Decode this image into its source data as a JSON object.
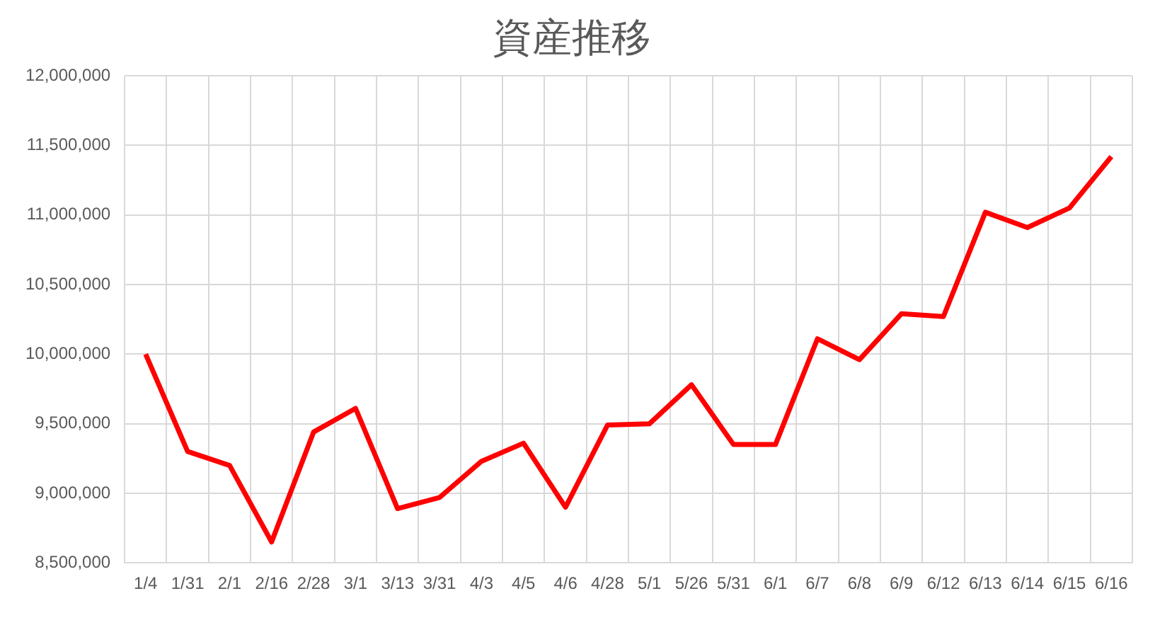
{
  "chart_data": {
    "type": "line",
    "title": "資産推移",
    "categories": [
      "1/4",
      "1/31",
      "2/1",
      "2/16",
      "2/28",
      "3/1",
      "3/13",
      "3/31",
      "4/3",
      "4/5",
      "4/6",
      "4/28",
      "5/1",
      "5/26",
      "5/31",
      "6/1",
      "6/7",
      "6/8",
      "6/9",
      "6/12",
      "6/13",
      "6/14",
      "6/15",
      "6/16"
    ],
    "series": [
      {
        "color": "#ff0000",
        "values": [
          10000000,
          9300000,
          9200000,
          8650000,
          9440000,
          9610000,
          8890000,
          8970000,
          9230000,
          9360000,
          8900000,
          9490000,
          9500000,
          9780000,
          9350000,
          9350000,
          10110000,
          9960000,
          10290000,
          10270000,
          11020000,
          10910000,
          11050000,
          11420000
        ]
      }
    ],
    "ylim": [
      8500000,
      12000000
    ],
    "yticks": [
      {
        "value": 8500000,
        "label": "8,500,000"
      },
      {
        "value": 9000000,
        "label": "9,000,000"
      },
      {
        "value": 9500000,
        "label": "9,500,000"
      },
      {
        "value": 10000000,
        "label": "10,000,000"
      },
      {
        "value": 10500000,
        "label": "10,500,000"
      },
      {
        "value": 11000000,
        "label": "11,000,000"
      },
      {
        "value": 11500000,
        "label": "11,500,000"
      },
      {
        "value": 12000000,
        "label": "12,000,000"
      }
    ],
    "grid": true,
    "legend": false,
    "marker": "none",
    "line_style": "solid"
  }
}
